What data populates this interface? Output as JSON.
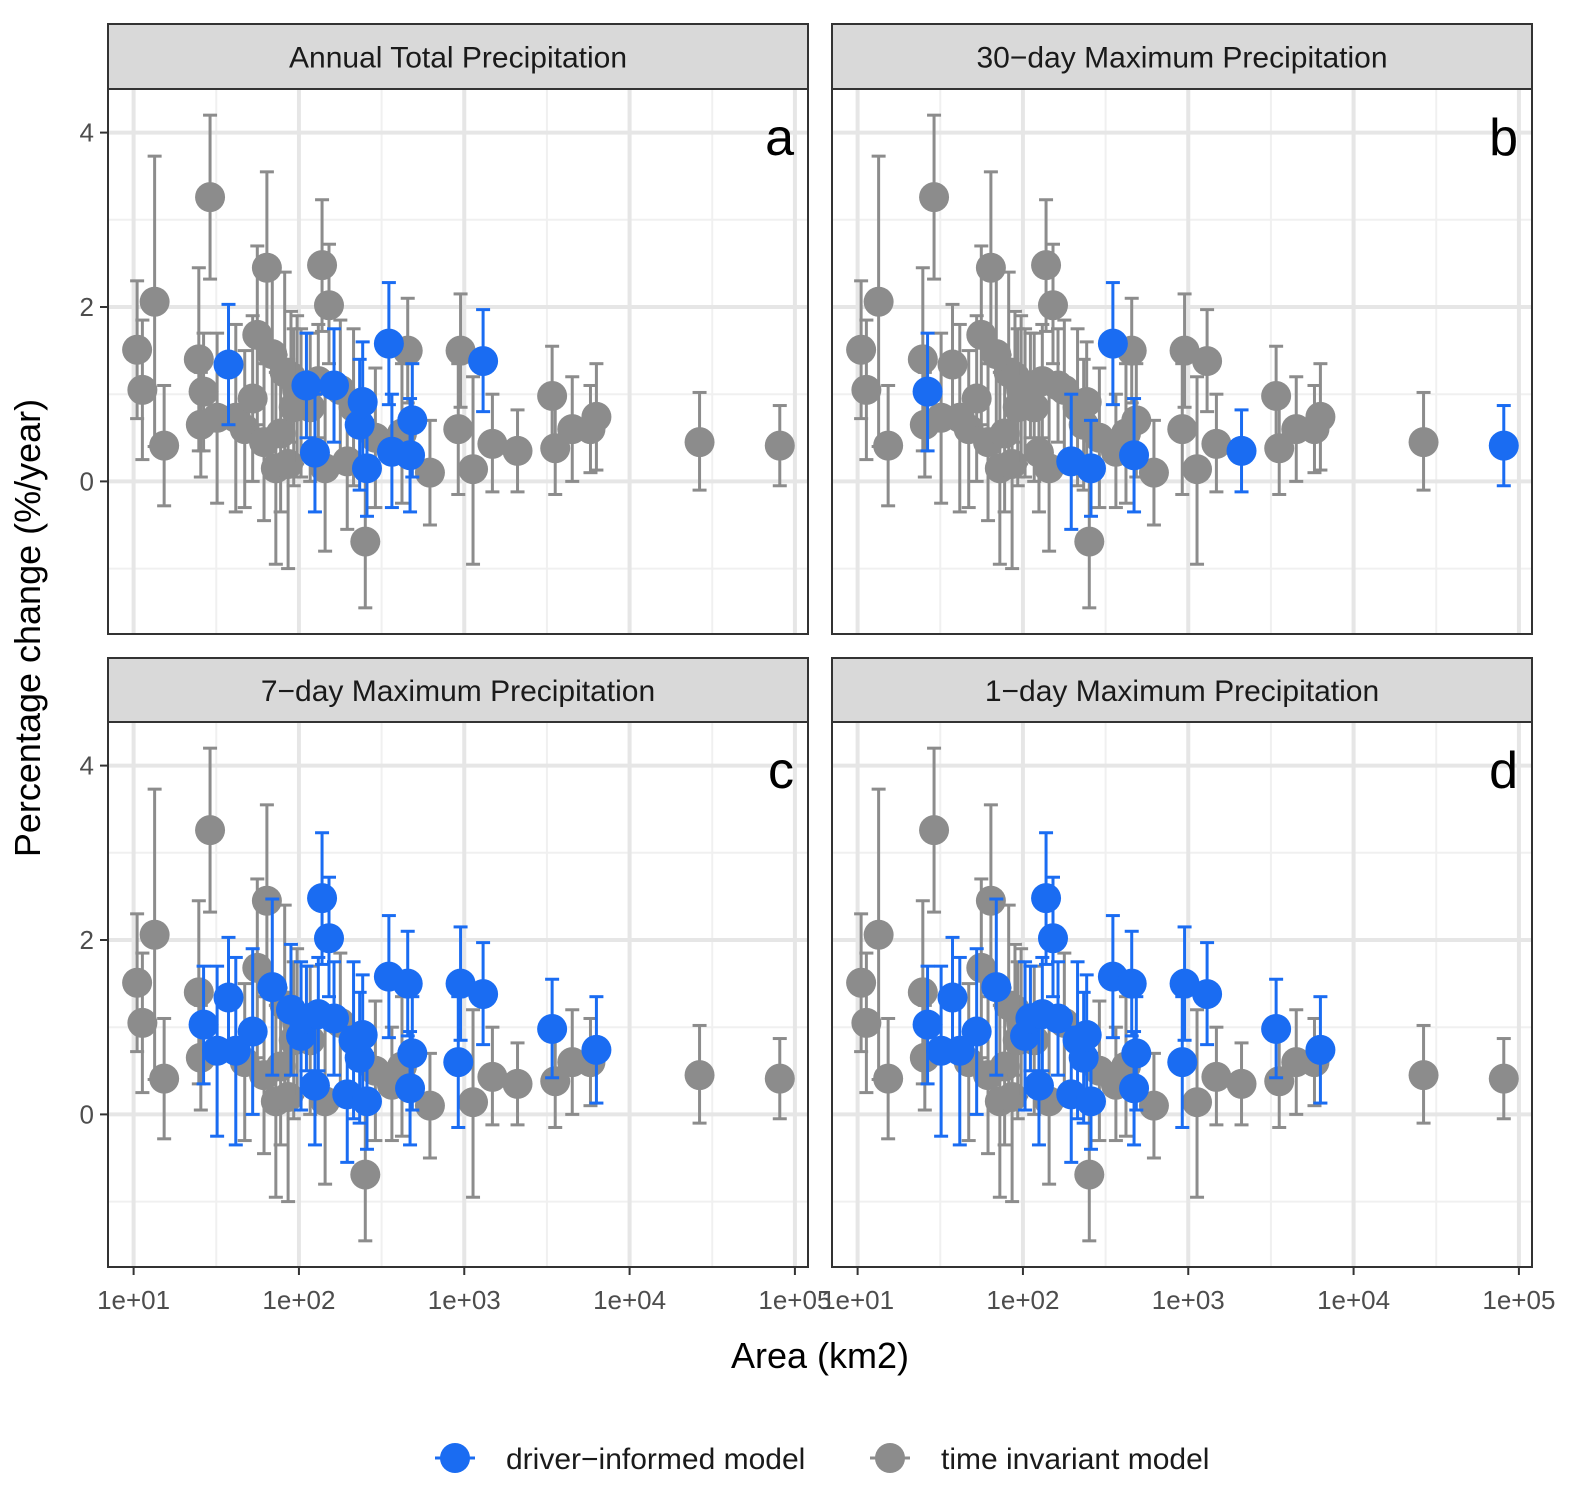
{
  "chart_data": {
    "type": "scatter",
    "layout": "2x2 faceted scatter with error bars",
    "ylabel": "Percentage change (%/year)",
    "xlabel": "Area (km2)",
    "x_scale": "log10",
    "xlim": [
      7,
      120000
    ],
    "ylim": [
      -1.75,
      4.5
    ],
    "x_ticks": [
      10,
      100,
      1000,
      10000,
      100000
    ],
    "x_tick_labels": [
      "1e+01",
      "1e+02",
      "1e+03",
      "1e+04",
      "1e+05"
    ],
    "y_ticks": [
      0,
      2,
      4
    ],
    "y_tick_labels": [
      "0",
      "2",
      "4"
    ],
    "colors": {
      "driver": "#1a6cf2",
      "invariant": "#8c8c8c"
    },
    "legend": {
      "position": "bottom",
      "entries": [
        {
          "key": "driver",
          "label": "driver−informed model"
        },
        {
          "key": "invariant",
          "label": "time invariant model"
        }
      ]
    },
    "stations": [
      {
        "x": 10.5,
        "y": 1.51,
        "lo": 0.72,
        "hi": 2.3
      },
      {
        "x": 11.3,
        "y": 1.05,
        "lo": 0.25,
        "hi": 1.85
      },
      {
        "x": 13.4,
        "y": 2.06,
        "lo": 0.4,
        "hi": 3.73
      },
      {
        "x": 15.3,
        "y": 0.41,
        "lo": -0.28,
        "hi": 1.1
      },
      {
        "x": 24.8,
        "y": 1.4,
        "lo": 0.35,
        "hi": 2.45
      },
      {
        "x": 25.5,
        "y": 0.65,
        "lo": 0.05,
        "hi": 1.25
      },
      {
        "x": 26.5,
        "y": 1.03,
        "lo": 0.35,
        "hi": 1.7
      },
      {
        "x": 29.0,
        "y": 3.26,
        "lo": 2.32,
        "hi": 4.2
      },
      {
        "x": 32.0,
        "y": 0.73,
        "lo": -0.25,
        "hi": 1.7
      },
      {
        "x": 37.5,
        "y": 1.34,
        "lo": 0.65,
        "hi": 2.03
      },
      {
        "x": 41.5,
        "y": 0.73,
        "lo": -0.35,
        "hi": 1.8
      },
      {
        "x": 47.0,
        "y": 0.6,
        "lo": -0.3,
        "hi": 1.5
      },
      {
        "x": 52.5,
        "y": 0.95,
        "lo": 0.0,
        "hi": 1.9
      },
      {
        "x": 56.0,
        "y": 1.68,
        "lo": 0.65,
        "hi": 2.7
      },
      {
        "x": 61.5,
        "y": 0.45,
        "lo": -0.45,
        "hi": 1.35
      },
      {
        "x": 64.0,
        "y": 2.45,
        "lo": 1.35,
        "hi": 3.55
      },
      {
        "x": 69.0,
        "y": 1.46,
        "lo": 0.45,
        "hi": 2.47
      },
      {
        "x": 72.5,
        "y": 0.15,
        "lo": -0.95,
        "hi": 1.25
      },
      {
        "x": 77.5,
        "y": 0.55,
        "lo": -0.35,
        "hi": 1.45
      },
      {
        "x": 82.0,
        "y": 1.25,
        "lo": 0.1,
        "hi": 2.4
      },
      {
        "x": 86.0,
        "y": 0.2,
        "lo": -1.0,
        "hi": 1.4
      },
      {
        "x": 89.5,
        "y": 1.2,
        "lo": 0.45,
        "hi": 1.95
      },
      {
        "x": 93.0,
        "y": 0.85,
        "lo": -0.05,
        "hi": 1.75
      },
      {
        "x": 97.5,
        "y": 1.05,
        "lo": 0.2,
        "hi": 1.9
      },
      {
        "x": 103.0,
        "y": 0.9,
        "lo": 0.05,
        "hi": 1.75
      },
      {
        "x": 111.0,
        "y": 1.1,
        "lo": 0.5,
        "hi": 1.7
      },
      {
        "x": 117.0,
        "y": 0.85,
        "lo": 0.0,
        "hi": 1.7
      },
      {
        "x": 125.0,
        "y": 0.33,
        "lo": -0.35,
        "hi": 1.0
      },
      {
        "x": 131.0,
        "y": 1.15,
        "lo": 0.5,
        "hi": 1.8
      },
      {
        "x": 138.0,
        "y": 2.48,
        "lo": 1.72,
        "hi": 3.23
      },
      {
        "x": 144.0,
        "y": 0.15,
        "lo": -0.8,
        "hi": 1.1
      },
      {
        "x": 152.0,
        "y": 2.02,
        "lo": 1.35,
        "hi": 2.72
      },
      {
        "x": 163.0,
        "y": 1.1,
        "lo": 0.45,
        "hi": 1.75
      },
      {
        "x": 178.0,
        "y": 1.05,
        "lo": 0.25,
        "hi": 1.85
      },
      {
        "x": 196.0,
        "y": 0.23,
        "lo": -0.55,
        "hi": 1.0
      },
      {
        "x": 214.0,
        "y": 0.85,
        "lo": -0.05,
        "hi": 1.75
      },
      {
        "x": 233.0,
        "y": 0.65,
        "lo": -0.1,
        "hi": 1.4
      },
      {
        "x": 243.0,
        "y": 0.91,
        "lo": 0.2,
        "hi": 1.6
      },
      {
        "x": 252.0,
        "y": -0.69,
        "lo": -1.45,
        "hi": 0.05
      },
      {
        "x": 258.0,
        "y": 0.15,
        "lo": -0.4,
        "hi": 0.7
      },
      {
        "x": 290.0,
        "y": 0.5,
        "lo": -0.3,
        "hi": 1.3
      },
      {
        "x": 350.0,
        "y": 1.58,
        "lo": 0.88,
        "hi": 2.28
      },
      {
        "x": 365.0,
        "y": 0.34,
        "lo": -0.3,
        "hi": 1.0
      },
      {
        "x": 420.0,
        "y": 0.55,
        "lo": -0.25,
        "hi": 1.35
      },
      {
        "x": 455.0,
        "y": 1.5,
        "lo": 0.9,
        "hi": 2.1
      },
      {
        "x": 470.0,
        "y": 0.3,
        "lo": -0.35,
        "hi": 0.95
      },
      {
        "x": 485.0,
        "y": 0.7,
        "lo": 0.05,
        "hi": 1.35
      },
      {
        "x": 620.0,
        "y": 0.1,
        "lo": -0.5,
        "hi": 0.7
      },
      {
        "x": 920.0,
        "y": 0.6,
        "lo": -0.15,
        "hi": 1.35
      },
      {
        "x": 950.0,
        "y": 1.5,
        "lo": 0.85,
        "hi": 2.15
      },
      {
        "x": 1130.0,
        "y": 0.14,
        "lo": -0.95,
        "hi": 1.2
      },
      {
        "x": 1300.0,
        "y": 1.38,
        "lo": 0.8,
        "hi": 1.97
      },
      {
        "x": 1480.0,
        "y": 0.43,
        "lo": -0.12,
        "hi": 1.0
      },
      {
        "x": 2100.0,
        "y": 0.35,
        "lo": -0.12,
        "hi": 0.82
      },
      {
        "x": 3400.0,
        "y": 0.98,
        "lo": 0.42,
        "hi": 1.55
      },
      {
        "x": 3550.0,
        "y": 0.38,
        "lo": -0.15,
        "hi": 0.9
      },
      {
        "x": 4500.0,
        "y": 0.6,
        "lo": 0.0,
        "hi": 1.2
      },
      {
        "x": 5800.0,
        "y": 0.6,
        "lo": 0.1,
        "hi": 1.1
      },
      {
        "x": 6300.0,
        "y": 0.74,
        "lo": 0.13,
        "hi": 1.35
      },
      {
        "x": 26500.0,
        "y": 0.45,
        "lo": -0.1,
        "hi": 1.02
      },
      {
        "x": 81000.0,
        "y": 0.41,
        "lo": -0.05,
        "hi": 0.87
      }
    ],
    "facets": [
      {
        "title": "Annual Total Precipitation",
        "tag": "a",
        "driver": [
          37.5,
          111.0,
          125.0,
          163.0,
          233.0,
          243.0,
          258.0,
          350.0,
          365.0,
          470.0,
          485.0,
          1300.0
        ]
      },
      {
        "title": "30−day Maximum Precipitation",
        "tag": "b",
        "driver": [
          26.5,
          196.0,
          258.0,
          350.0,
          470.0,
          2100.0,
          81000.0
        ]
      },
      {
        "title": "7−day Maximum Precipitation",
        "tag": "c",
        "driver": [
          26.5,
          37.5,
          32.0,
          41.5,
          52.5,
          69.0,
          89.5,
          103.0,
          111.0,
          125.0,
          131.0,
          138.0,
          152.0,
          163.0,
          196.0,
          214.0,
          233.0,
          243.0,
          258.0,
          350.0,
          455.0,
          470.0,
          485.0,
          920.0,
          950.0,
          1300.0,
          3400.0,
          6300.0
        ]
      },
      {
        "title": "1−day Maximum Precipitation",
        "tag": "d",
        "driver": [
          26.5,
          37.5,
          32.0,
          41.5,
          52.5,
          69.0,
          103.0,
          111.0,
          125.0,
          131.0,
          138.0,
          152.0,
          163.0,
          196.0,
          214.0,
          233.0,
          243.0,
          258.0,
          350.0,
          455.0,
          470.0,
          485.0,
          920.0,
          950.0,
          1300.0,
          3400.0,
          6300.0
        ]
      }
    ]
  }
}
